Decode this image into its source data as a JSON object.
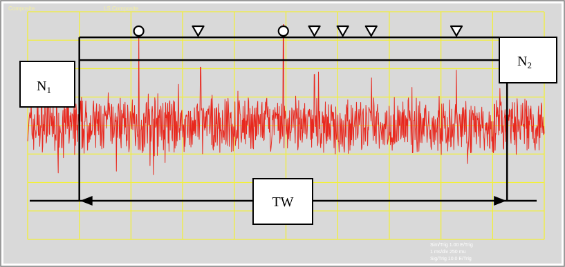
{
  "colors": {
    "background": "#d9d9d9",
    "grid": "#f2ef3a",
    "signal": "#e8281e",
    "annotation": "#000000",
    "label_box": "#ffffff",
    "header_text": "#f4f0a0"
  },
  "header": {
    "left": "Composite",
    "middle": "LS Composite"
  },
  "labels": {
    "n1_base": "N",
    "n1_sub": "1",
    "n2_base": "N",
    "n2_sub": "2",
    "time_window": "TW"
  },
  "status_readout": [
    "Sim/Trig  1.00 E/Trig",
    "1 ms/div  250 mu",
    "Sig/Trig  10.0 E/Trig"
  ],
  "chart_data": {
    "type": "line",
    "grid": true,
    "grid_divisions": {
      "x": 10,
      "y": 8
    },
    "event_markers": [
      {
        "division": 2.15,
        "symbol": "circle"
      },
      {
        "division": 3.3,
        "symbol": "triangle-down"
      },
      {
        "division": 4.95,
        "symbol": "circle"
      },
      {
        "division": 5.55,
        "symbol": "triangle-down"
      },
      {
        "division": 6.1,
        "symbol": "triangle-down"
      },
      {
        "division": 6.65,
        "symbol": "triangle-down"
      },
      {
        "division": 8.3,
        "symbol": "triangle-down"
      }
    ],
    "thresholds": [
      {
        "label": "N2",
        "level": 3.1
      },
      {
        "label": "N1",
        "level": 2.3
      }
    ],
    "time_window": {
      "label": "TW",
      "start_division": 1.0,
      "end_division": 9.28
    },
    "trace": {
      "description_free": true,
      "samples": 1200,
      "seed": 7,
      "spikes": [
        {
          "division": 2.15,
          "level": 3.35
        },
        {
          "division": 4.95,
          "level": 3.55
        },
        {
          "division": 3.35,
          "level": 2.05
        },
        {
          "division": 5.55,
          "level": 1.8
        },
        {
          "division": 8.3,
          "level": 1.95
        }
      ]
    }
  }
}
